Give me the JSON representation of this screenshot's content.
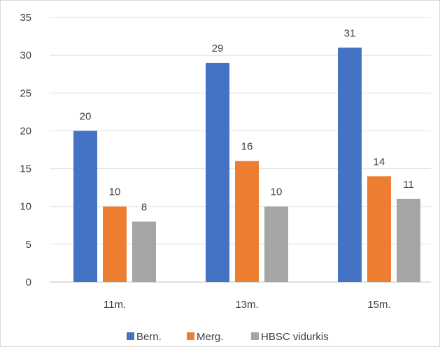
{
  "chart_data": {
    "type": "bar",
    "categories": [
      "11m.",
      "13m.",
      "15m."
    ],
    "series": [
      {
        "name": "Bern.",
        "values": [
          20,
          29,
          31
        ],
        "color": "#4472c4"
      },
      {
        "name": "Merg.",
        "values": [
          10,
          16,
          14
        ],
        "color": "#ed7d31"
      },
      {
        "name": "HBSC vidurkis",
        "values": [
          8,
          10,
          11
        ],
        "color": "#a5a5a5"
      }
    ],
    "ylim": [
      0,
      35
    ],
    "yticks": [
      0,
      5,
      10,
      15,
      20,
      25,
      30,
      35
    ],
    "grid": true,
    "data_labels": true,
    "legend_position": "bottom",
    "title": "",
    "xlabel": "",
    "ylabel": ""
  }
}
